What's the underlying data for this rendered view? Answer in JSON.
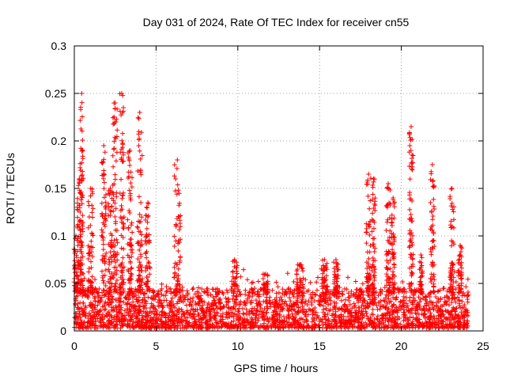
{
  "chart_data": {
    "type": "scatter",
    "title": "Day 031 of 2024, Rate Of TEC Index for receiver cn55",
    "xlabel": "GPS time / hours",
    "ylabel": "ROTI / TECUs",
    "xlim": [
      0,
      25
    ],
    "ylim": [
      0,
      0.3
    ],
    "xticks": [
      0,
      5,
      10,
      15,
      20,
      25
    ],
    "xtick_labels": [
      "0",
      "5",
      "10",
      "15",
      "20",
      "25"
    ],
    "yticks": [
      0,
      0.05,
      0.1,
      0.15,
      0.2,
      0.25,
      0.3
    ],
    "ytick_labels": [
      "0",
      "0.05",
      "0.1",
      "0.15",
      "0.2",
      "0.25",
      "0.3"
    ],
    "grid": true,
    "marker": "+",
    "color": "#ff0000",
    "series": [
      {
        "name": "ROTI",
        "x_range": [
          0,
          24.1
        ],
        "baseline_range": [
          0.003,
          0.045
        ],
        "spikes": [
          {
            "x": 0.1,
            "width": 0.25,
            "max": 0.1
          },
          {
            "x": 0.3,
            "width": 0.25,
            "max": 0.16
          },
          {
            "x": 0.45,
            "width": 0.2,
            "max": 0.25
          },
          {
            "x": 1.0,
            "width": 0.3,
            "max": 0.15
          },
          {
            "x": 1.8,
            "width": 0.3,
            "max": 0.195
          },
          {
            "x": 2.2,
            "width": 0.25,
            "max": 0.15
          },
          {
            "x": 2.5,
            "width": 0.3,
            "max": 0.24
          },
          {
            "x": 2.9,
            "width": 0.3,
            "max": 0.25
          },
          {
            "x": 3.4,
            "width": 0.3,
            "max": 0.19
          },
          {
            "x": 4.0,
            "width": 0.3,
            "max": 0.23
          },
          {
            "x": 4.5,
            "width": 0.3,
            "max": 0.135
          },
          {
            "x": 6.3,
            "width": 0.4,
            "max": 0.18
          },
          {
            "x": 9.8,
            "width": 0.4,
            "max": 0.075
          },
          {
            "x": 11.7,
            "width": 0.3,
            "max": 0.06
          },
          {
            "x": 13.8,
            "width": 0.4,
            "max": 0.07
          },
          {
            "x": 15.3,
            "width": 0.4,
            "max": 0.075
          },
          {
            "x": 16.0,
            "width": 0.3,
            "max": 0.075
          },
          {
            "x": 18.0,
            "width": 0.3,
            "max": 0.165
          },
          {
            "x": 18.3,
            "width": 0.2,
            "max": 0.16
          },
          {
            "x": 19.2,
            "width": 0.25,
            "max": 0.155
          },
          {
            "x": 19.5,
            "width": 0.2,
            "max": 0.14
          },
          {
            "x": 20.6,
            "width": 0.25,
            "max": 0.215
          },
          {
            "x": 21.2,
            "width": 0.2,
            "max": 0.08
          },
          {
            "x": 21.9,
            "width": 0.25,
            "max": 0.175
          },
          {
            "x": 23.1,
            "width": 0.25,
            "max": 0.15
          },
          {
            "x": 23.6,
            "width": 0.25,
            "max": 0.09
          }
        ]
      }
    ]
  }
}
